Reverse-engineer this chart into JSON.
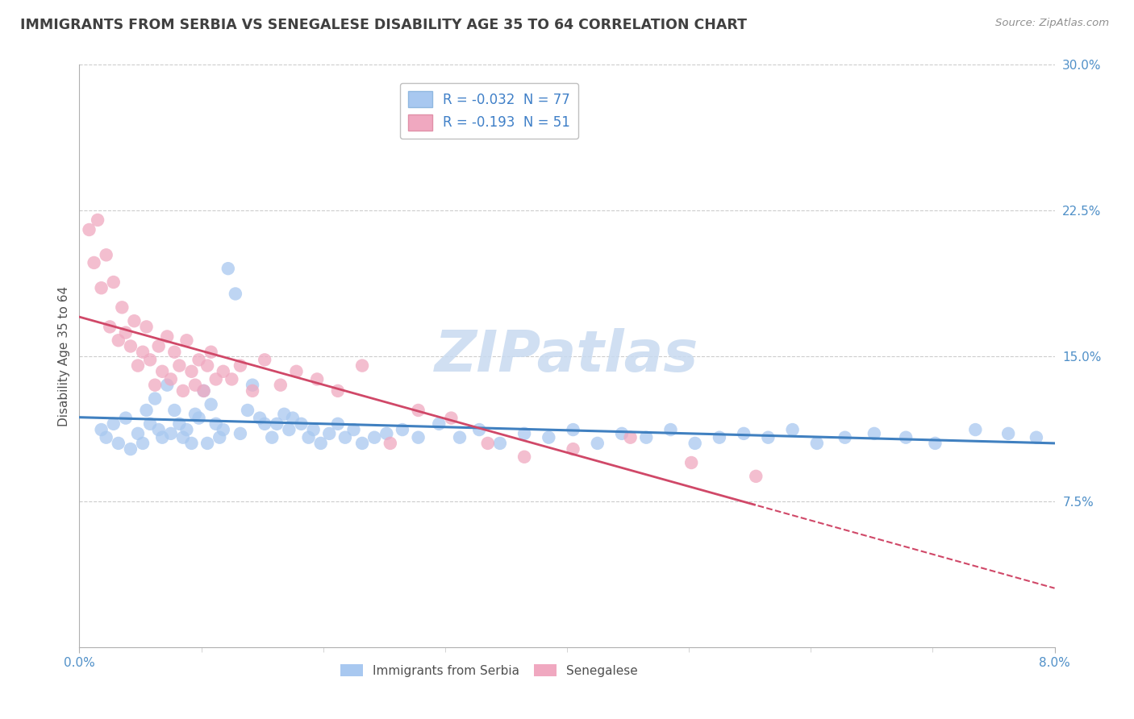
{
  "title": "IMMIGRANTS FROM SERBIA VS SENEGALESE DISABILITY AGE 35 TO 64 CORRELATION CHART",
  "source": "Source: ZipAtlas.com",
  "ylabel": "Disability Age 35 to 64",
  "watermark": "ZIPatlas",
  "series1_color": "#a8c8f0",
  "series2_color": "#f0a8c0",
  "line1_color": "#4080c0",
  "line2_color": "#d04868",
  "watermark_color": "#c8daf0",
  "xlim": [
    0.0,
    8.0
  ],
  "ylim": [
    0.0,
    30.0
  ],
  "yticks_right": [
    7.5,
    15.0,
    22.5,
    30.0
  ],
  "series1_label": "R = -0.032  N = 77",
  "series2_label": "R = -0.193  N = 51",
  "legend1_label": "Immigrants from Serbia",
  "legend2_label": "Senegalese",
  "series1_x": [
    0.18,
    0.22,
    0.28,
    0.32,
    0.38,
    0.42,
    0.48,
    0.52,
    0.55,
    0.58,
    0.62,
    0.65,
    0.68,
    0.72,
    0.75,
    0.78,
    0.82,
    0.85,
    0.88,
    0.92,
    0.95,
    0.98,
    1.02,
    1.05,
    1.08,
    1.12,
    1.15,
    1.18,
    1.22,
    1.28,
    1.32,
    1.38,
    1.42,
    1.48,
    1.52,
    1.58,
    1.62,
    1.68,
    1.72,
    1.75,
    1.82,
    1.88,
    1.92,
    1.98,
    2.05,
    2.12,
    2.18,
    2.25,
    2.32,
    2.42,
    2.52,
    2.65,
    2.78,
    2.95,
    3.12,
    3.28,
    3.45,
    3.65,
    3.85,
    4.05,
    4.25,
    4.45,
    4.65,
    4.85,
    5.05,
    5.25,
    5.45,
    5.65,
    5.85,
    6.05,
    6.28,
    6.52,
    6.78,
    7.02,
    7.35,
    7.62,
    7.85
  ],
  "series1_y": [
    11.2,
    10.8,
    11.5,
    10.5,
    11.8,
    10.2,
    11.0,
    10.5,
    12.2,
    11.5,
    12.8,
    11.2,
    10.8,
    13.5,
    11.0,
    12.2,
    11.5,
    10.8,
    11.2,
    10.5,
    12.0,
    11.8,
    13.2,
    10.5,
    12.5,
    11.5,
    10.8,
    11.2,
    19.5,
    18.2,
    11.0,
    12.2,
    13.5,
    11.8,
    11.5,
    10.8,
    11.5,
    12.0,
    11.2,
    11.8,
    11.5,
    10.8,
    11.2,
    10.5,
    11.0,
    11.5,
    10.8,
    11.2,
    10.5,
    10.8,
    11.0,
    11.2,
    10.8,
    11.5,
    10.8,
    11.2,
    10.5,
    11.0,
    10.8,
    11.2,
    10.5,
    11.0,
    10.8,
    11.2,
    10.5,
    10.8,
    11.0,
    10.8,
    11.2,
    10.5,
    10.8,
    11.0,
    10.8,
    10.5,
    11.2,
    11.0,
    10.8
  ],
  "series2_x": [
    0.08,
    0.12,
    0.15,
    0.18,
    0.22,
    0.25,
    0.28,
    0.32,
    0.35,
    0.38,
    0.42,
    0.45,
    0.48,
    0.52,
    0.55,
    0.58,
    0.62,
    0.65,
    0.68,
    0.72,
    0.75,
    0.78,
    0.82,
    0.85,
    0.88,
    0.92,
    0.95,
    0.98,
    1.02,
    1.05,
    1.08,
    1.12,
    1.18,
    1.25,
    1.32,
    1.42,
    1.52,
    1.65,
    1.78,
    1.95,
    2.12,
    2.32,
    2.55,
    2.78,
    3.05,
    3.35,
    3.65,
    4.05,
    4.52,
    5.02,
    5.55
  ],
  "series2_y": [
    21.5,
    19.8,
    22.0,
    18.5,
    20.2,
    16.5,
    18.8,
    15.8,
    17.5,
    16.2,
    15.5,
    16.8,
    14.5,
    15.2,
    16.5,
    14.8,
    13.5,
    15.5,
    14.2,
    16.0,
    13.8,
    15.2,
    14.5,
    13.2,
    15.8,
    14.2,
    13.5,
    14.8,
    13.2,
    14.5,
    15.2,
    13.8,
    14.2,
    13.8,
    14.5,
    13.2,
    14.8,
    13.5,
    14.2,
    13.8,
    13.2,
    14.5,
    10.5,
    12.2,
    11.8,
    10.5,
    9.8,
    10.2,
    10.8,
    9.5,
    8.8
  ]
}
